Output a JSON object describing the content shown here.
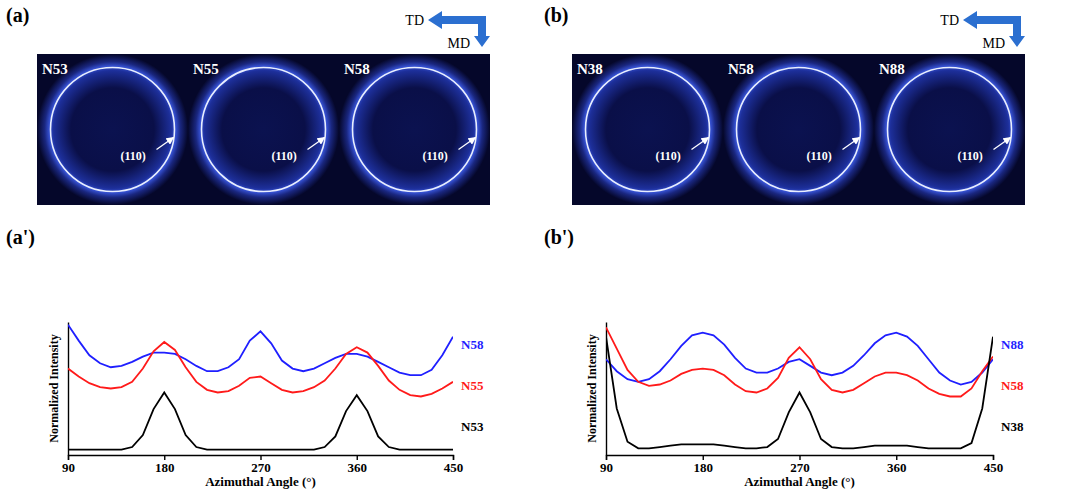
{
  "figure": {
    "panels": [
      {
        "letter": "(a)",
        "images": [
          {
            "label": "N53",
            "reflection": "(110)"
          },
          {
            "label": "N55",
            "reflection": "(110)"
          },
          {
            "label": "N58",
            "reflection": "(110)"
          }
        ],
        "directions": {
          "transverse": "TD",
          "machine": "MD"
        }
      },
      {
        "letter": "(b)",
        "images": [
          {
            "label": "N38",
            "reflection": "(110)"
          },
          {
            "label": "N58",
            "reflection": "(110)"
          },
          {
            "label": "N88",
            "reflection": "(110)"
          }
        ],
        "directions": {
          "transverse": "TD",
          "machine": "MD"
        }
      }
    ]
  },
  "chart_data": [
    {
      "type": "line",
      "panel_label": "(a')",
      "x_label": "Azimuthal Angle (°)",
      "y_label": "Normalized Intensity",
      "x": [
        90,
        100,
        110,
        120,
        130,
        140,
        150,
        160,
        170,
        180,
        190,
        200,
        210,
        220,
        230,
        240,
        250,
        260,
        270,
        280,
        290,
        300,
        310,
        320,
        330,
        340,
        350,
        360,
        370,
        380,
        390,
        400,
        410,
        420,
        430,
        440,
        450
      ],
      "xlim": [
        90,
        450
      ],
      "xticks": [
        90,
        180,
        270,
        360,
        450
      ],
      "ylim": [
        0,
        10
      ],
      "tick_labels": "x",
      "series": [
        {
          "name": "N58",
          "color": "#1f1fff",
          "values": [
            9.8,
            8.6,
            7.5,
            6.9,
            6.6,
            6.7,
            7.0,
            7.4,
            7.7,
            7.7,
            7.6,
            7.2,
            6.7,
            6.3,
            6.3,
            6.6,
            7.2,
            8.6,
            9.3,
            8.4,
            7.1,
            6.5,
            6.3,
            6.5,
            6.9,
            7.3,
            7.6,
            7.6,
            7.4,
            7.0,
            6.6,
            6.2,
            6.0,
            6.0,
            6.4,
            7.5,
            8.9
          ]
        },
        {
          "name": "N55",
          "color": "#ff1a1a",
          "values": [
            6.5,
            5.9,
            5.4,
            5.1,
            5.0,
            5.1,
            5.5,
            6.5,
            7.8,
            8.5,
            7.9,
            6.6,
            5.5,
            4.9,
            4.7,
            4.8,
            5.2,
            5.8,
            5.9,
            5.4,
            4.9,
            4.7,
            4.8,
            5.1,
            5.6,
            6.5,
            7.6,
            8.1,
            7.7,
            6.7,
            5.6,
            4.9,
            4.5,
            4.4,
            4.6,
            5.0,
            5.5
          ]
        },
        {
          "name": "N53",
          "color": "#000000",
          "values": [
            0.4,
            0.4,
            0.4,
            0.4,
            0.4,
            0.4,
            0.6,
            1.5,
            3.45,
            4.7,
            3.45,
            1.5,
            0.6,
            0.4,
            0.4,
            0.4,
            0.4,
            0.4,
            0.4,
            0.4,
            0.4,
            0.4,
            0.4,
            0.4,
            0.6,
            1.4,
            3.3,
            4.5,
            3.3,
            1.4,
            0.6,
            0.4,
            0.4,
            0.4,
            0.4,
            0.4,
            0.4
          ]
        }
      ]
    },
    {
      "type": "line",
      "panel_label": "(b')",
      "x_label": "Azimuthal Angle (°)",
      "y_label": "Normalized Intensity",
      "x": [
        90,
        100,
        110,
        120,
        130,
        140,
        150,
        160,
        170,
        180,
        190,
        200,
        210,
        220,
        230,
        240,
        250,
        260,
        270,
        280,
        290,
        300,
        310,
        320,
        330,
        340,
        350,
        360,
        370,
        380,
        390,
        400,
        410,
        420,
        430,
        440,
        450
      ],
      "xlim": [
        90,
        450
      ],
      "xticks": [
        90,
        180,
        270,
        360,
        450
      ],
      "ylim": [
        0,
        10
      ],
      "tick_labels": "x",
      "series": [
        {
          "name": "N88",
          "color": "#1f1fff",
          "values": [
            7.2,
            6.3,
            5.7,
            5.5,
            5.7,
            6.3,
            7.2,
            8.2,
            9.0,
            9.2,
            9.0,
            8.3,
            7.3,
            6.5,
            6.2,
            6.2,
            6.5,
            7.0,
            7.2,
            6.7,
            6.2,
            6.0,
            6.2,
            6.7,
            7.5,
            8.4,
            9.0,
            9.2,
            8.9,
            8.2,
            7.2,
            6.2,
            5.6,
            5.3,
            5.5,
            6.2,
            7.2
          ]
        },
        {
          "name": "N58",
          "color": "#ff1a1a",
          "values": [
            9.6,
            8.0,
            6.4,
            5.5,
            5.2,
            5.3,
            5.6,
            6.1,
            6.4,
            6.5,
            6.4,
            6.0,
            5.3,
            4.8,
            4.7,
            5.0,
            5.8,
            7.3,
            8.1,
            7.2,
            5.7,
            4.9,
            4.7,
            4.9,
            5.4,
            5.9,
            6.2,
            6.2,
            6.0,
            5.6,
            5.0,
            4.6,
            4.4,
            4.4,
            5.0,
            6.3,
            7.4
          ]
        },
        {
          "name": "N38",
          "color": "#000000",
          "values": [
            8.9,
            3.5,
            1.0,
            0.5,
            0.5,
            0.6,
            0.7,
            0.8,
            0.8,
            0.8,
            0.8,
            0.7,
            0.6,
            0.5,
            0.5,
            0.6,
            1.2,
            3.2,
            4.7,
            3.2,
            1.2,
            0.6,
            0.5,
            0.5,
            0.6,
            0.7,
            0.7,
            0.7,
            0.7,
            0.6,
            0.5,
            0.5,
            0.5,
            0.5,
            0.9,
            3.5,
            8.9
          ]
        }
      ]
    }
  ]
}
